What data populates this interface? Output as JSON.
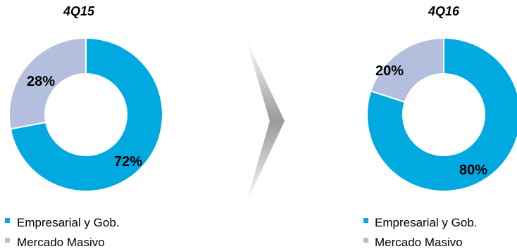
{
  "chart_data": [
    {
      "type": "pie",
      "variant": "donut",
      "title": "4Q15",
      "categories": [
        "Empresarial y Gob.",
        "Mercado Masivo"
      ],
      "values": [
        72,
        28
      ],
      "data_labels": [
        "72%",
        "28%"
      ],
      "colors": [
        "#00a9e0",
        "#b3bfdc"
      ],
      "legend_placement": "bottom"
    },
    {
      "type": "pie",
      "variant": "donut",
      "title": "4Q16",
      "categories": [
        "Empresarial y Gob.",
        "Mercado Masivo"
      ],
      "values": [
        80,
        20
      ],
      "data_labels": [
        "80%",
        "20%"
      ],
      "colors": [
        "#00a9e0",
        "#b3bfdc"
      ],
      "legend_placement": "bottom"
    }
  ],
  "divider": {
    "icon": "chevron-right-arrow",
    "color": "#9a9a9a"
  }
}
